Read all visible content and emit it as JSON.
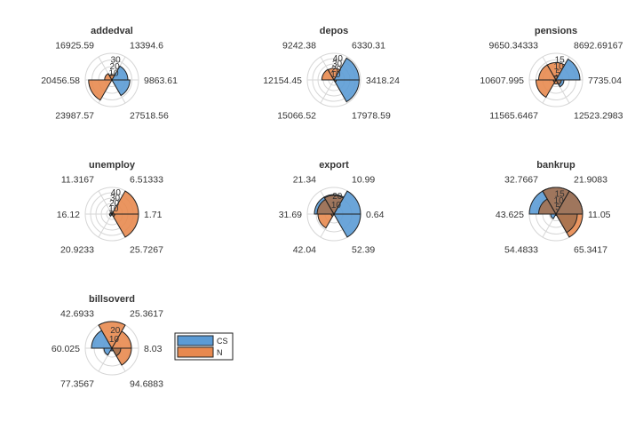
{
  "chart_data": {
    "type": "polar-histogram",
    "series_names": [
      "CS",
      "N"
    ],
    "colors": {
      "CS": "#5b9bd5",
      "N": "#e8894f",
      "overlap": "#a5714f"
    },
    "legend": {
      "position": "right of billsoverd",
      "items": [
        "CS",
        "N"
      ]
    },
    "panels": [
      {
        "title": "addedval",
        "edge_labels": [
          "13394.6",
          "9863.61",
          "27518.56",
          "23987.57",
          "20456.58",
          "16925.59"
        ],
        "radial_ticks": [
          "10",
          "20",
          "30"
        ],
        "rmax": 40,
        "series": [
          {
            "name": "CS",
            "values": [
              24,
              27,
              0,
              0,
              0,
              0
            ]
          },
          {
            "name": "N",
            "values": [
              0,
              0,
              0,
              35,
              11,
              8
            ]
          }
        ]
      },
      {
        "title": "depos",
        "edge_labels": [
          "6330.31",
          "3418.24",
          "17978.59",
          "15066.52",
          "12154.45",
          "9242.38"
        ],
        "radial_ticks": [
          "10",
          "20",
          "30",
          "40"
        ],
        "rmax": 55,
        "series": [
          {
            "name": "CS",
            "values": [
              52,
              52,
              0,
              0,
              0,
              0
            ]
          },
          {
            "name": "N",
            "values": [
              0,
              5,
              0,
              0,
              25,
              24
            ]
          }
        ]
      },
      {
        "title": "pensions",
        "edge_labels": [
          "8692.69167",
          "7735.04",
          "12523.2983",
          "11565.6467",
          "10607.995",
          "9650.34333"
        ],
        "radial_ticks": [
          "5",
          "10",
          "15"
        ],
        "rmax": 20,
        "series": [
          {
            "name": "CS",
            "values": [
              18,
              6,
              0,
              2,
              0,
              3
            ]
          },
          {
            "name": "N",
            "values": [
              0,
              4,
              3,
              15,
              13,
              13
            ]
          }
        ]
      },
      {
        "title": "unemploy",
        "edge_labels": [
          "6.51333",
          "1.71",
          "25.7267",
          "20.9233",
          "16.12",
          "11.3167"
        ],
        "radial_ticks": [
          "10",
          "20",
          "30",
          "40"
        ],
        "rmax": 55,
        "series": [
          {
            "name": "CS",
            "values": [
              4,
              6,
              2,
              5,
              4,
              4
            ]
          },
          {
            "name": "N",
            "values": [
              55,
              55,
              0,
              0,
              4,
              0
            ]
          }
        ]
      },
      {
        "title": "export",
        "edge_labels": [
          "10.99",
          "0.64",
          "52.39",
          "42.04",
          "31.69",
          "21.34"
        ],
        "radial_ticks": [
          "10",
          "20"
        ],
        "rmax": 30,
        "series": [
          {
            "name": "CS",
            "values": [
              30,
              30,
              0,
              3,
              22,
              22
            ]
          },
          {
            "name": "N",
            "values": [
              0,
              0,
              0,
              18,
              19,
              21
            ]
          }
        ]
      },
      {
        "title": "bankrup",
        "edge_labels": [
          "21.9083",
          "11.05",
          "65.3417",
          "54.4833",
          "43.625",
          "32.7667"
        ],
        "radial_ticks": [
          "5",
          "10",
          "15"
        ],
        "rmax": 20,
        "series": [
          {
            "name": "CS",
            "values": [
              20,
              16,
              1,
              4,
              20,
              20
            ]
          },
          {
            "name": "N",
            "values": [
              20,
              20,
              0,
              0,
              13,
              20
            ]
          }
        ]
      },
      {
        "title": "billsoverd",
        "edge_labels": [
          "25.3617",
          "8.03",
          "94.6883",
          "77.3567",
          "60.025",
          "42.6933"
        ],
        "radial_ticks": [
          "10",
          "20"
        ],
        "rmax": 30,
        "series": [
          {
            "name": "CS",
            "values": [
              0,
              10,
              3,
              9,
              23,
              0
            ]
          },
          {
            "name": "N",
            "values": [
              22,
              22,
              0,
              0,
              0,
              30
            ]
          }
        ]
      }
    ]
  }
}
